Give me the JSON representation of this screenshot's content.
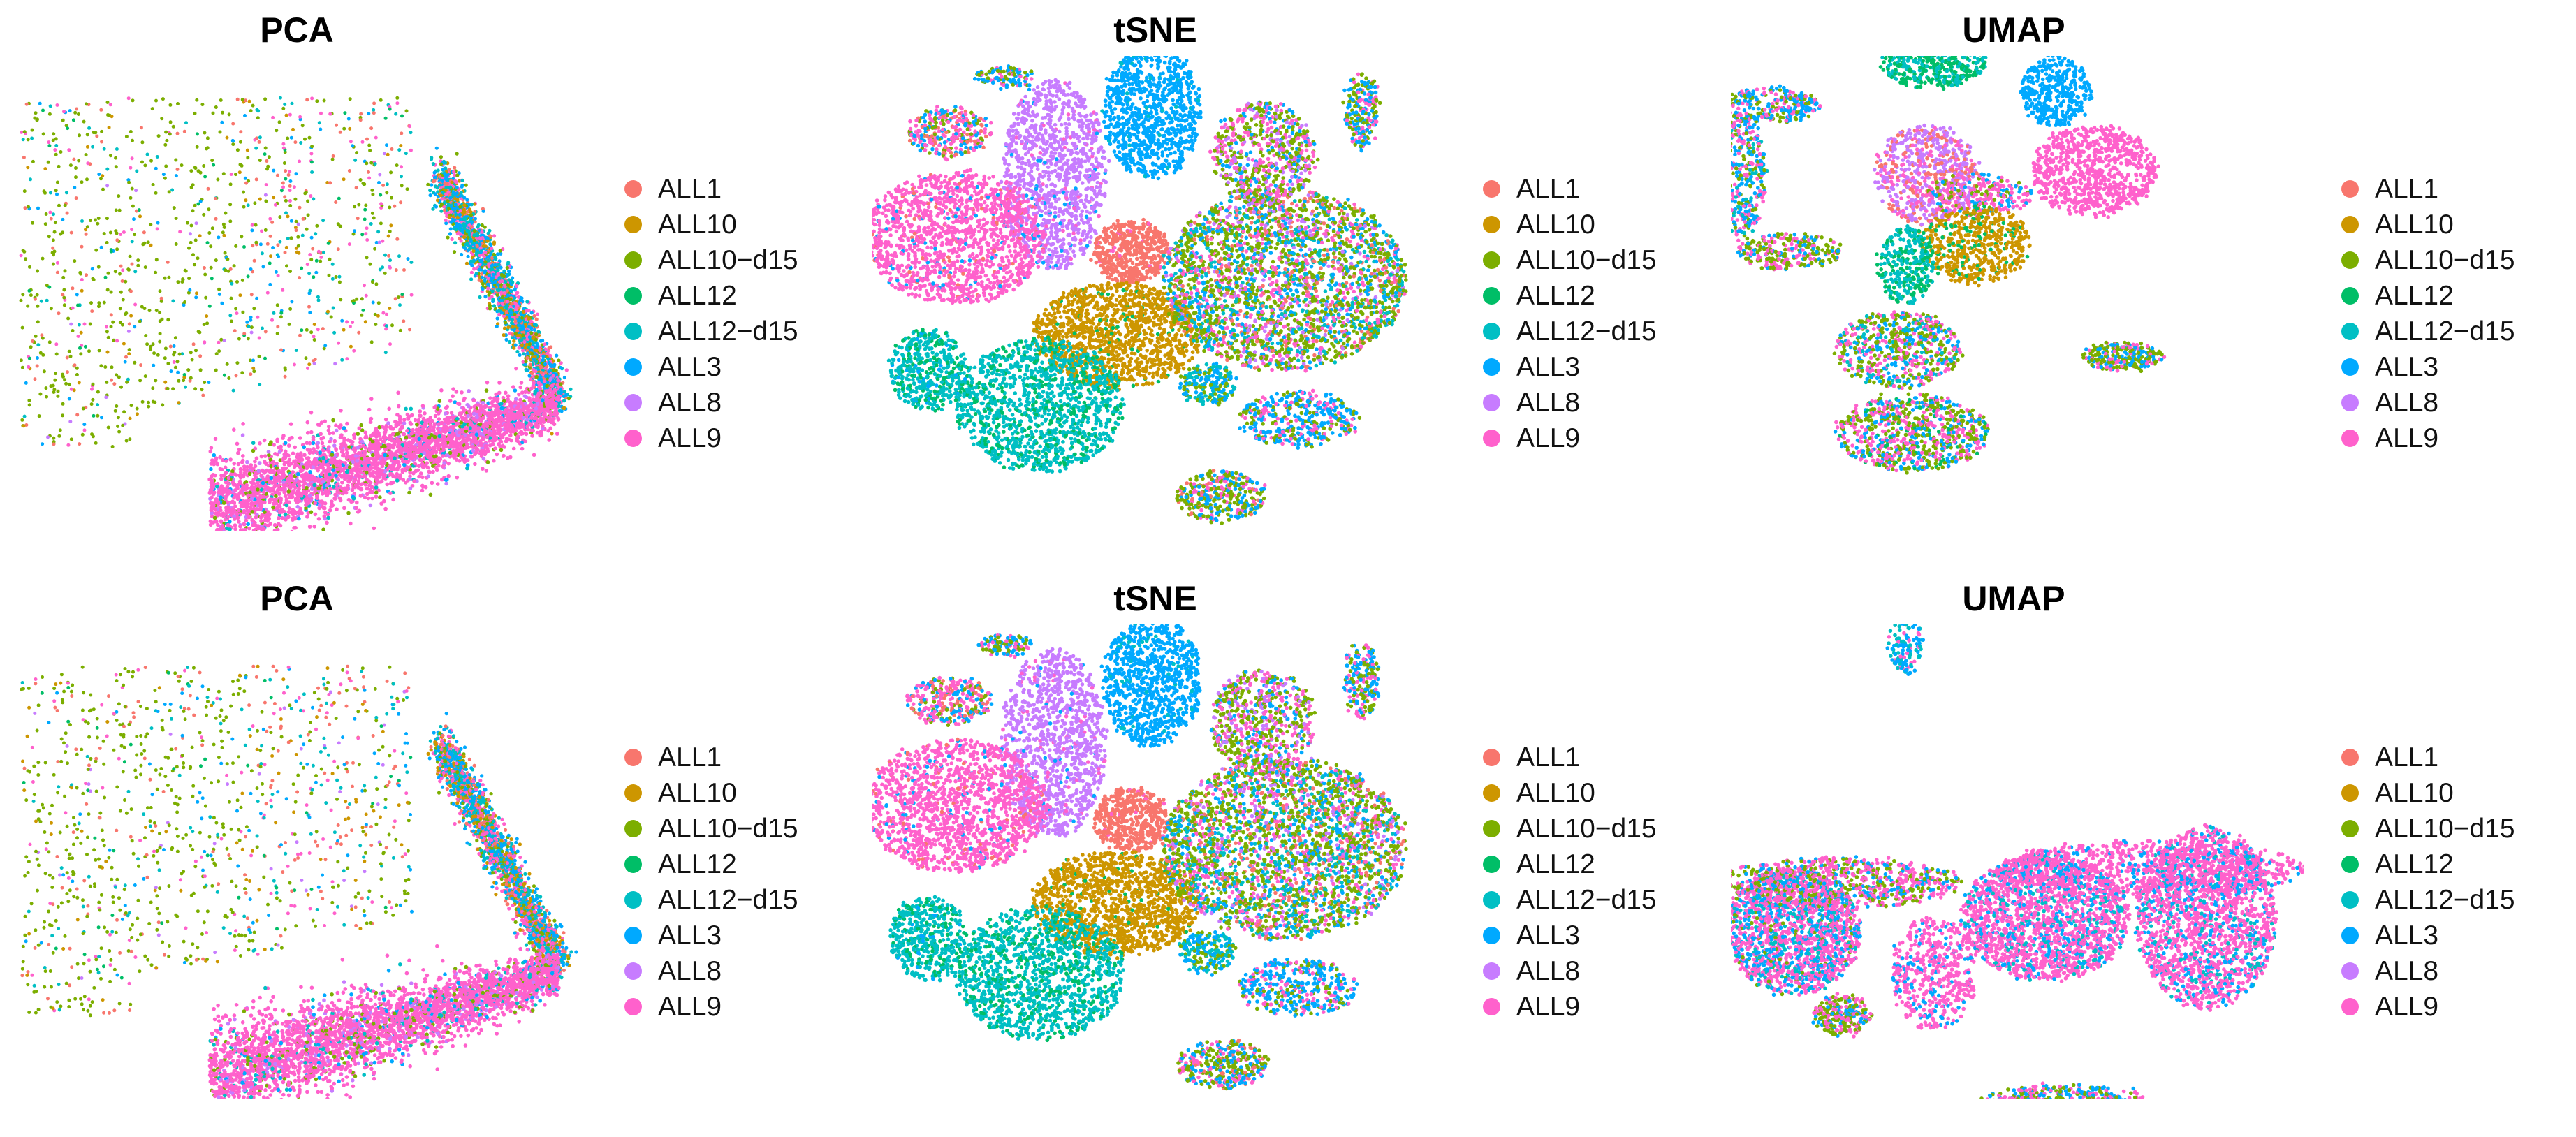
{
  "colors": {
    "ALL1": "#F8766D",
    "ALL10": "#CD9600",
    "ALL10-d15": "#7CAE00",
    "ALL12": "#00BE67",
    "ALL12-d15": "#00BFC4",
    "ALL3": "#00A9FF",
    "ALL8": "#C77CFF",
    "ALL9": "#FF61CC"
  },
  "chart_data": [
    {
      "type": "scatter",
      "title": "PCA",
      "legend_position": "right",
      "legend": [
        "ALL1",
        "ALL10",
        "ALL10-d15",
        "ALL12",
        "ALL12-d15",
        "ALL3",
        "ALL8",
        "ALL9"
      ]
    },
    {
      "type": "scatter",
      "title": "tSNE",
      "legend_position": "right",
      "legend": [
        "ALL1",
        "ALL10",
        "ALL10-d15",
        "ALL12",
        "ALL12-d15",
        "ALL3",
        "ALL8",
        "ALL9"
      ]
    },
    {
      "type": "scatter",
      "title": "UMAP",
      "legend_position": "right",
      "legend": [
        "ALL1",
        "ALL10",
        "ALL10-d15",
        "ALL12",
        "ALL12-d15",
        "ALL3",
        "ALL8",
        "ALL9"
      ]
    },
    {
      "type": "scatter",
      "title": "PCA",
      "legend_position": "right",
      "legend": [
        "ALL1",
        "ALL10",
        "ALL10-d15",
        "ALL12",
        "ALL12-d15",
        "ALL3",
        "ALL8",
        "ALL9"
      ]
    },
    {
      "type": "scatter",
      "title": "tSNE",
      "legend_position": "right",
      "legend": [
        "ALL1",
        "ALL10",
        "ALL10-d15",
        "ALL12",
        "ALL12-d15",
        "ALL3",
        "ALL8",
        "ALL9"
      ]
    },
    {
      "type": "scatter",
      "title": "UMAP",
      "legend_position": "right",
      "legend": [
        "ALL1",
        "ALL10",
        "ALL10-d15",
        "ALL12",
        "ALL12-d15",
        "ALL3",
        "ALL8",
        "ALL9"
      ]
    }
  ]
}
